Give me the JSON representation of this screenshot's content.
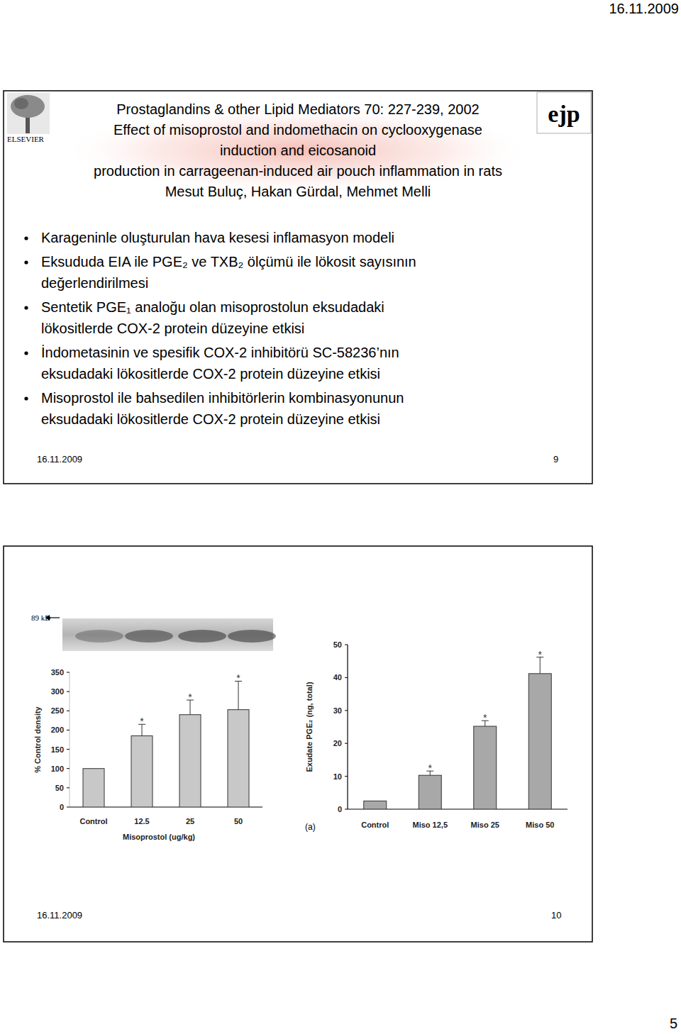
{
  "document": {
    "page_date": "16.11.2009",
    "page_number": "5",
    "slides": [
      {
        "publisher": "ELSEVIER",
        "journal_logo": "ejp",
        "title_lines": [
          "Prostaglandins & other Lipid Mediators 70: 227-239, 2002",
          "Effect of misoprostol and indomethacin on cyclooxygenase",
          "induction and eicosanoid",
          "production in carrageenan-induced air pouch inflammation in rats",
          "Mesut Buluç, Hakan Gürdal, Mehmet Melli"
        ],
        "bullets": [
          [
            "Karageninle oluşturulan hava kesesi inflamasyon modeli"
          ],
          [
            "Eksududa EIA ile PGE₂ ve TXB₂ ölçümü ile lökosit sayısının",
            "değerlendirilmesi"
          ],
          [
            "Sentetik PGE₁ analoğu olan misoprostolun eksudadaki",
            "lökositlerde COX-2 protein düzeyine etkisi"
          ],
          [
            "İndometasinin ve spesifik COX-2 inhibitörü SC-58236’nın",
            "eksudadaki lökositlerde COX-2 protein düzeyine etkisi"
          ],
          [
            "Misoprostol ile bahsedilen inhibitörlerin kombinasyonunun",
            "eksudadaki lökositlerde COX-2 protein düzeyine etkisi"
          ]
        ],
        "footer_date": "16.11.2009",
        "slide_number": "9"
      },
      {
        "blot_label": "89 kD",
        "panel_label": "(a)",
        "footer_date": "16.11.2009",
        "slide_number": "10"
      }
    ]
  },
  "chart_data": [
    {
      "type": "bar",
      "categories": [
        "Control",
        "12.5",
        "25",
        "50"
      ],
      "values": [
        100,
        185,
        240,
        253
      ],
      "errors": [
        null,
        30,
        38,
        74
      ],
      "significance": [
        null,
        "*",
        "*",
        "*"
      ],
      "x_label": "Misoprostol (ug/kg)",
      "y_label": "% Control density",
      "ylim": [
        0,
        350
      ],
      "yticks": [
        0,
        50,
        100,
        150,
        200,
        250,
        300,
        350
      ],
      "color": "#c8c8c8"
    },
    {
      "type": "bar",
      "categories": [
        "Control",
        "Miso 12,5",
        "Miso 25",
        "Miso 50"
      ],
      "values": [
        2.5,
        10.3,
        25.2,
        41.2
      ],
      "errors": [
        null,
        1.3,
        1.7,
        5.0
      ],
      "significance": [
        null,
        "*",
        "*",
        "*"
      ],
      "y_label": "Exudate PGE₂ (ng, total)",
      "ylim": [
        0,
        50
      ],
      "yticks": [
        0,
        10,
        20,
        30,
        40,
        50
      ],
      "color": "#a8a8a8"
    }
  ]
}
